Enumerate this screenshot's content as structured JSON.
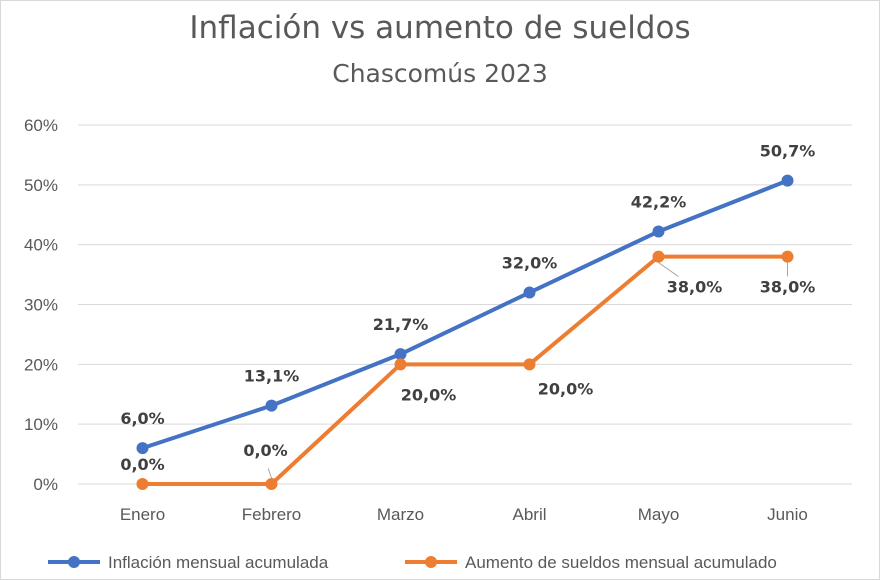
{
  "chart_data": {
    "type": "line",
    "title": "Inflación vs aumento de sueldos",
    "subtitle": "Chascomús 2023",
    "categories": [
      "Enero",
      "Febrero",
      "Marzo",
      "Abril",
      "Mayo",
      "Junio"
    ],
    "ylim": [
      0,
      60
    ],
    "yticks": [
      0,
      10,
      20,
      30,
      40,
      50,
      60
    ],
    "ytick_labels": [
      "0%",
      "10%",
      "20%",
      "30%",
      "40%",
      "50%",
      "60%"
    ],
    "grid": true,
    "legend_position": "bottom",
    "series": [
      {
        "name": "Inflación mensual acumulada",
        "color": "#4472c4",
        "values": [
          6.0,
          13.1,
          21.7,
          32.0,
          42.2,
          50.7
        ],
        "labels": [
          "6,0%",
          "13,1%",
          "21,7%",
          "32,0%",
          "42,2%",
          "50,7%"
        ]
      },
      {
        "name": "Aumento de sueldos mensual acumulado",
        "color": "#ed7d31",
        "values": [
          0.0,
          0.0,
          20.0,
          20.0,
          38.0,
          38.0
        ],
        "labels": [
          "0,0%",
          "0,0%",
          "20,0%",
          "20,0%",
          "38,0%",
          "38,0%"
        ]
      }
    ]
  }
}
